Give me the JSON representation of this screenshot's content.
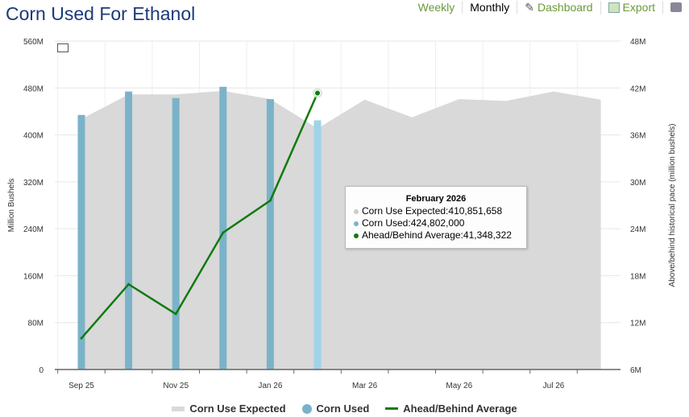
{
  "title": "Corn Used For Ethanol",
  "toolbar": {
    "weekly": "Weekly",
    "monthly": "Monthly",
    "dashboard": "Dashboard",
    "export": "Export"
  },
  "colors": {
    "area": "#d9d9d9",
    "bars": "#7ab3c9",
    "bar_highlight": "#9fd3e8",
    "line": "#107a10"
  },
  "chart_data": {
    "type": "bar",
    "title": "Corn Used For Ethanol",
    "ylabel": "Million Bushels",
    "y2label": "Above/behind historical pace (million bushels)",
    "ylim": [
      0,
      560000000
    ],
    "y2lim": [
      6000000,
      48000000
    ],
    "yticks": [
      "0",
      "80M",
      "160M",
      "240M",
      "320M",
      "400M",
      "480M",
      "560M"
    ],
    "y2ticks": [
      "6M",
      "12M",
      "18M",
      "24M",
      "30M",
      "36M",
      "42M",
      "48M"
    ],
    "xticks": [
      "Sep 25",
      "Nov 25",
      "Jan 26",
      "Mar 26",
      "May 26",
      "Jul 26"
    ],
    "months": [
      "Sep 25",
      "Oct 25",
      "Nov 25",
      "Dec 25",
      "Jan 26",
      "Feb 26",
      "Mar 26",
      "Apr 26",
      "May 26",
      "Jun 26",
      "Jul 26",
      "Aug 26"
    ],
    "series": [
      {
        "name": "Corn Use Expected",
        "type": "area",
        "values": [
          427000000,
          469000000,
          469000000,
          475000000,
          461000000,
          410851658,
          460000000,
          430000000,
          461000000,
          458000000,
          474000000,
          460000000
        ]
      },
      {
        "name": "Corn Used",
        "type": "bar",
        "values": [
          434000000,
          474000000,
          463000000,
          482000000,
          461000000,
          424802000
        ]
      },
      {
        "name": "Ahead/Behind Average",
        "type": "line",
        "axis": "right",
        "values": [
          10000000,
          16900000,
          13100000,
          23500000,
          27600000,
          41348322
        ]
      }
    ]
  },
  "tooltip": {
    "header": "February 2026",
    "rows": [
      {
        "label": "Corn Use Expected:",
        "value": "410,851,658"
      },
      {
        "label": "Corn Used:",
        "value": "424,802,000"
      },
      {
        "label": "Ahead/Behind Average:",
        "value": "41,348,322"
      }
    ]
  }
}
